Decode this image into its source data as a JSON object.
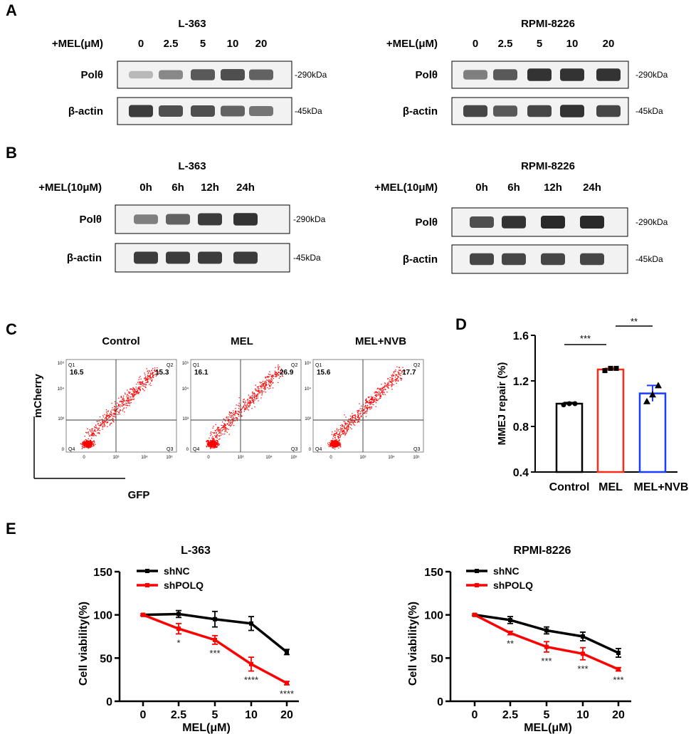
{
  "panels": {
    "A": {
      "letter": "A",
      "blots": [
        {
          "cell_line": "L-363",
          "treatment_label": "+MEL(μM)",
          "lanes": [
            "0",
            "2.5",
            "5",
            "10",
            "20"
          ],
          "rows": [
            {
              "label": "Polθ",
              "marker": "-290kDa",
              "intensity": [
                0.25,
                0.5,
                0.75,
                0.8,
                0.7
              ]
            },
            {
              "label": "β-actin",
              "marker": "-45kDa",
              "intensity": [
                0.9,
                0.8,
                0.8,
                0.7,
                0.6
              ]
            }
          ]
        },
        {
          "cell_line": "RPMI-8226",
          "treatment_label": "+MEL(μM)",
          "lanes": [
            "0",
            "2.5",
            "5",
            "10",
            "20"
          ],
          "rows": [
            {
              "label": "Polθ",
              "marker": "-290kDa",
              "intensity": [
                0.55,
                0.75,
                0.95,
                0.95,
                0.95
              ]
            },
            {
              "label": "β-actin",
              "marker": "-45kDa",
              "intensity": [
                0.85,
                0.75,
                0.85,
                0.95,
                0.85
              ]
            }
          ]
        }
      ]
    },
    "B": {
      "letter": "B",
      "blots": [
        {
          "cell_line": "L-363",
          "treatment_label": "+MEL(10μM)",
          "lanes": [
            "0h",
            "6h",
            "12h",
            "24h"
          ],
          "rows": [
            {
              "label": "Polθ",
              "marker": "-290kDa",
              "intensity": [
                0.55,
                0.7,
                0.9,
                0.95
              ]
            },
            {
              "label": "β-actin",
              "marker": "-45kDa",
              "intensity": [
                0.9,
                0.9,
                0.9,
                0.9
              ]
            }
          ]
        },
        {
          "cell_line": "RPMI-8226",
          "treatment_label": "+MEL(10μM)",
          "lanes": [
            "0h",
            "6h",
            "12h",
            "24h"
          ],
          "rows": [
            {
              "label": "Polθ",
              "marker": "-290kDa",
              "intensity": [
                0.8,
                0.95,
                1.0,
                1.0
              ]
            },
            {
              "label": "β-actin",
              "marker": "-45kDa",
              "intensity": [
                0.85,
                0.85,
                0.85,
                0.85
              ]
            }
          ]
        }
      ]
    },
    "C": {
      "letter": "C",
      "y_label": "mCherry",
      "x_label": "GFP",
      "plots": [
        {
          "title": "Control",
          "q1": "16.5",
          "q2": "15.3"
        },
        {
          "title": "MEL",
          "q1": "16.1",
          "q2": "26.9"
        },
        {
          "title": "MEL+NVB",
          "q1": "15.6",
          "q2": "17.7"
        }
      ],
      "quadrant_names": [
        "Q1",
        "Q2",
        "Q3",
        "Q4"
      ],
      "y_ticks": [
        "10⁵",
        "10⁴",
        "10³",
        "0"
      ],
      "x_ticks": [
        "0",
        "10³",
        "10⁴",
        "10⁵"
      ],
      "dot_color": "#ff0000"
    },
    "D": {
      "letter": "D"
    },
    "E": {
      "letter": "E"
    }
  },
  "chart_data": [
    {
      "type": "bar",
      "panel": "D",
      "ylabel": "MMEJ repair (%)",
      "categories": [
        "Control",
        "MEL",
        "MEL+NVB"
      ],
      "values": [
        1.0,
        1.3,
        1.09
      ],
      "errors": [
        0.01,
        0.01,
        0.07
      ],
      "points": [
        [
          0.99,
          1.0,
          1.0
        ],
        [
          1.29,
          1.31,
          1.31
        ],
        [
          1.02,
          1.08,
          1.16
        ]
      ],
      "colors": [
        "#000000",
        "#ff2a1a",
        "#1a3cff"
      ],
      "ylim": [
        0.4,
        1.6
      ],
      "yticks": [
        0.4,
        0.8,
        1.2,
        1.6
      ],
      "significance": [
        {
          "from": 0,
          "to": 1,
          "label": "***"
        },
        {
          "from": 1,
          "to": 2,
          "label": "**"
        }
      ]
    },
    {
      "type": "line",
      "panel": "E",
      "title": "L-363",
      "xlabel": "MEL(μM)",
      "ylabel": "Cell viability(%)",
      "x": [
        "0",
        "2.5",
        "5",
        "10",
        "20"
      ],
      "ylim": [
        0,
        150
      ],
      "yticks": [
        0,
        50,
        100,
        150
      ],
      "series": [
        {
          "name": "shNC",
          "color": "#000000",
          "values": [
            100,
            101,
            95,
            90,
            57
          ],
          "errors": [
            1,
            4,
            9,
            8,
            3
          ]
        },
        {
          "name": "shPOLQ",
          "color": "#ff0000",
          "values": [
            100,
            84,
            71,
            43,
            21
          ],
          "errors": [
            1,
            6,
            5,
            8,
            2
          ]
        }
      ],
      "significance": [
        "",
        "*",
        "***",
        "****",
        "****"
      ]
    },
    {
      "type": "line",
      "panel": "E",
      "title": "RPMI-8226",
      "xlabel": "MEL(μM)",
      "ylabel": "Cell viability(%)",
      "x": [
        "0",
        "2.5",
        "5",
        "10",
        "20"
      ],
      "ylim": [
        0,
        150
      ],
      "yticks": [
        0,
        50,
        100,
        150
      ],
      "series": [
        {
          "name": "shNC",
          "color": "#000000",
          "values": [
            100,
            94,
            82,
            75,
            56
          ],
          "errors": [
            1,
            4,
            4,
            5,
            5
          ]
        },
        {
          "name": "shPOLQ",
          "color": "#ff0000",
          "values": [
            100,
            79,
            63,
            55,
            37
          ],
          "errors": [
            1,
            2,
            6,
            7,
            2
          ]
        }
      ],
      "significance": [
        "",
        "**",
        "***",
        "***",
        "***"
      ]
    }
  ]
}
